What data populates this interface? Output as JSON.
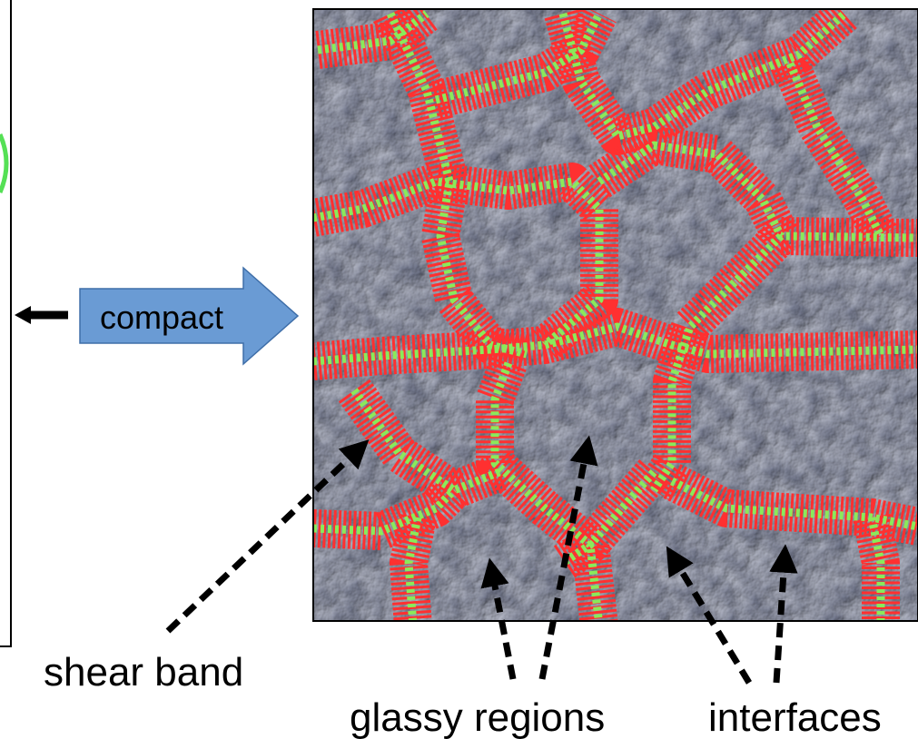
{
  "arrow_label": "compact",
  "labels": {
    "shear_band": "shear band",
    "glassy_regions": "glassy regions",
    "interfaces": "interfaces"
  }
}
